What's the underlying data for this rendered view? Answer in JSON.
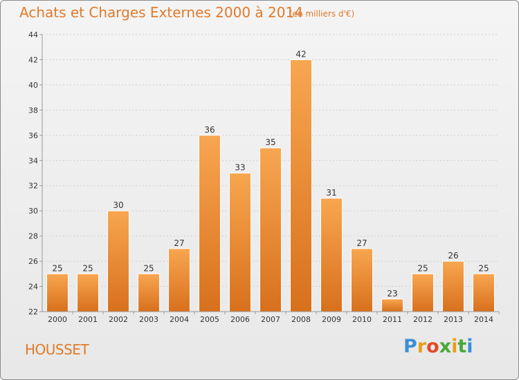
{
  "header": {
    "title": "Achats et Charges Externes 2000 à 2014",
    "subtitle": "(en milliers d'€)"
  },
  "footer": {
    "place": "HOUSSET",
    "logo_letters": [
      "P",
      "r",
      "o",
      "x",
      "i",
      "t",
      "i"
    ],
    "logo_colors": [
      "#3a8fd6",
      "#e8a01a",
      "#e24a2a",
      "#4aa83a",
      "#e8a01a",
      "#4aa83a",
      "#3a8fd6"
    ]
  },
  "colors": {
    "bar_top": "#f8a650",
    "bar_bottom": "#d8701c",
    "axis": "#999999",
    "grid": "#cfcfcf"
  },
  "chart_data": {
    "type": "bar",
    "title": "Achats et Charges Externes 2000 à 2014",
    "subtitle": "(en milliers d'€)",
    "categories": [
      "2000",
      "2001",
      "2002",
      "2003",
      "2004",
      "2005",
      "2006",
      "2007",
      "2008",
      "2009",
      "2010",
      "2011",
      "2012",
      "2013",
      "2014"
    ],
    "values": [
      25,
      25,
      30,
      25,
      27,
      36,
      33,
      35,
      42,
      31,
      27,
      23,
      25,
      26,
      25
    ],
    "ylim": [
      22,
      44
    ],
    "yticks": [
      22,
      24,
      26,
      28,
      30,
      32,
      34,
      36,
      38,
      40,
      42,
      44
    ],
    "grid": true,
    "xlabel": "",
    "ylabel": ""
  }
}
